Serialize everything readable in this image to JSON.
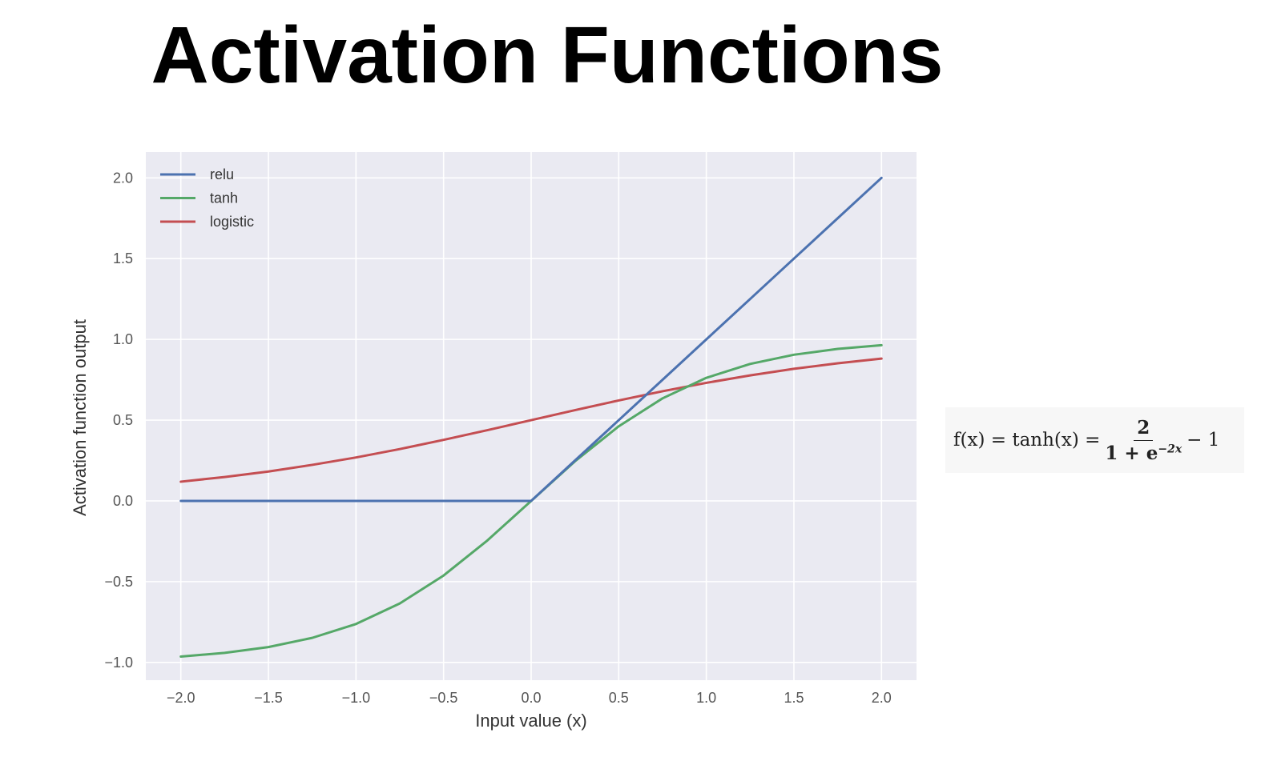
{
  "page": {
    "title": "Activation Functions"
  },
  "formula": {
    "lhs": "f(x) = tanh(x) =",
    "numerator": "2",
    "denominator_base": "1 + e",
    "denominator_exp": "−2x",
    "tail": "− 1"
  },
  "chart_data": {
    "type": "line",
    "title": "",
    "xlabel": "Input value (x)",
    "ylabel": "Activation function output",
    "xlim": [
      -2.2,
      2.2
    ],
    "ylim": [
      -1.11,
      2.16
    ],
    "x_ticks": [
      -2.0,
      -1.5,
      -1.0,
      -0.5,
      0.0,
      0.5,
      1.0,
      1.5,
      2.0
    ],
    "x_tick_labels": [
      "−2.0",
      "−1.5",
      "−1.0",
      "−0.5",
      "0.0",
      "0.5",
      "1.0",
      "1.5",
      "2.0"
    ],
    "y_ticks": [
      -1.0,
      -0.5,
      0.0,
      0.5,
      1.0,
      1.5,
      2.0
    ],
    "y_tick_labels": [
      "−1.0",
      "−0.5",
      "0.0",
      "0.5",
      "1.0",
      "1.5",
      "2.0"
    ],
    "grid": true,
    "legend_position": "top-left",
    "x": [
      -2.0,
      -1.75,
      -1.5,
      -1.25,
      -1.0,
      -0.75,
      -0.5,
      -0.25,
      0.0,
      0.25,
      0.5,
      0.75,
      1.0,
      1.25,
      1.5,
      1.75,
      2.0
    ],
    "series": [
      {
        "name": "relu",
        "color": "#4c72b0",
        "values": [
          0,
          0,
          0,
          0,
          0,
          0,
          0,
          0,
          0,
          0.25,
          0.5,
          0.75,
          1.0,
          1.25,
          1.5,
          1.75,
          2.0
        ]
      },
      {
        "name": "tanh",
        "color": "#55a868",
        "values": [
          -0.964,
          -0.941,
          -0.905,
          -0.848,
          -0.762,
          -0.635,
          -0.462,
          -0.245,
          0.0,
          0.245,
          0.462,
          0.635,
          0.762,
          0.848,
          0.905,
          0.941,
          0.964
        ]
      },
      {
        "name": "logistic",
        "color": "#c44e52",
        "values": [
          0.119,
          0.148,
          0.182,
          0.223,
          0.269,
          0.321,
          0.378,
          0.438,
          0.5,
          0.562,
          0.622,
          0.679,
          0.731,
          0.777,
          0.818,
          0.852,
          0.881
        ]
      }
    ],
    "colors": {
      "plot_background": "#eaeaf2",
      "grid": "#ffffff"
    }
  }
}
